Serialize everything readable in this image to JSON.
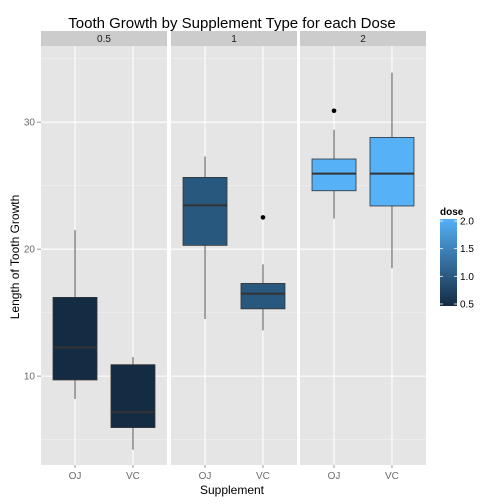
{
  "chart_data": {
    "type": "boxplot",
    "title": "Tooth Growth by Supplement Type for each Dose",
    "xlabel": "Supplement",
    "ylabel": "Length of Tooth Growth",
    "ylim": [
      3,
      36
    ],
    "yticks": [
      "10",
      "20",
      "30"
    ],
    "facets": [
      {
        "label": "0.5",
        "dose": 0.5,
        "categories": [
          "OJ",
          "VC"
        ],
        "boxes": [
          {
            "category": "OJ",
            "min": 8.2,
            "q1": 9.7,
            "median": 12.25,
            "q3": 16.2,
            "max": 21.5,
            "outliers": []
          },
          {
            "category": "VC",
            "min": 4.2,
            "q1": 5.95,
            "median": 7.15,
            "q3": 10.9,
            "max": 11.5,
            "outliers": []
          }
        ]
      },
      {
        "label": "1",
        "dose": 1,
        "categories": [
          "OJ",
          "VC"
        ],
        "boxes": [
          {
            "category": "OJ",
            "min": 14.5,
            "q1": 20.3,
            "median": 23.45,
            "q3": 25.65,
            "max": 27.3,
            "outliers": []
          },
          {
            "category": "VC",
            "min": 13.6,
            "q1": 15.3,
            "median": 16.5,
            "q3": 17.3,
            "max": 18.8,
            "outliers": [
              22.5
            ]
          }
        ]
      },
      {
        "label": "2",
        "dose": 2,
        "categories": [
          "OJ",
          "VC"
        ],
        "boxes": [
          {
            "category": "OJ",
            "min": 22.4,
            "q1": 24.6,
            "median": 25.95,
            "q3": 27.1,
            "max": 29.4,
            "outliers": [
              30.9
            ]
          },
          {
            "category": "VC",
            "min": 18.5,
            "q1": 23.4,
            "median": 25.95,
            "q3": 28.8,
            "max": 33.9,
            "outliers": []
          }
        ]
      }
    ],
    "legend": {
      "title": "dose",
      "placement": "right",
      "range": [
        0.5,
        2.0
      ],
      "ticks": [
        "0.5",
        "1.0",
        "1.5",
        "2.0"
      ],
      "low_color": "#132b43",
      "high_color": "#56b1f7"
    },
    "panel_background": "#e5e5e5",
    "strip_background": "#cccccc",
    "grid_color": "#ffffff",
    "grid": true
  }
}
